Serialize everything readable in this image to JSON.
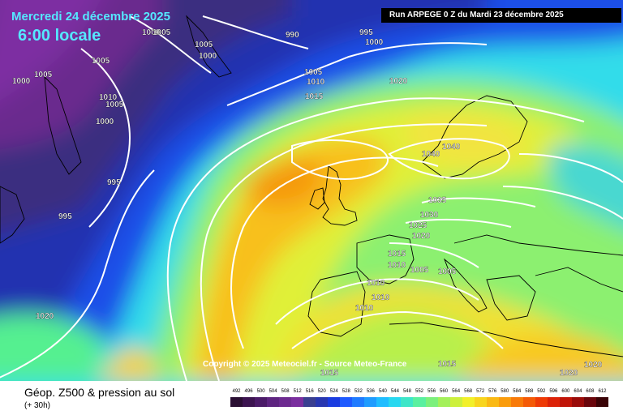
{
  "header": {
    "date_text": "Mercredi 24 décembre 2025",
    "hour_text": "6:00 locale",
    "run_text": "Run ARPEGE 0 Z du Mardi 23 décembre 2025"
  },
  "copyright": "Copyright © 2025 Meteociel.fr - Source Meteo-France",
  "footer": {
    "title": "Géop. Z500 & pression au sol",
    "subtitle": "(+ 30h)"
  },
  "scale": {
    "labels": [
      "492",
      "496",
      "500",
      "504",
      "508",
      "512",
      "516",
      "520",
      "524",
      "528",
      "532",
      "536",
      "540",
      "544",
      "548",
      "552",
      "556",
      "560",
      "564",
      "568",
      "572",
      "576",
      "580",
      "584",
      "588",
      "592",
      "596",
      "600",
      "604",
      "608",
      "612"
    ],
    "colors": [
      "#2a0f33",
      "#3c1450",
      "#4b1b68",
      "#5e2480",
      "#6d2a90",
      "#7a2e9e",
      "#3a3f90",
      "#2837b0",
      "#1a3ce0",
      "#1e5aff",
      "#1f7bff",
      "#1f9cff",
      "#20bdff",
      "#28d8f0",
      "#3ee6c8",
      "#5af0a0",
      "#7cf07c",
      "#a4f05a",
      "#cdf03c",
      "#f2f02a",
      "#f8d51e",
      "#fab914",
      "#fa9c0c",
      "#f87a08",
      "#f45a06",
      "#ee3a06",
      "#dc2208",
      "#c01408",
      "#9a0c0a",
      "#6a060c",
      "#3a0306"
    ]
  },
  "isobars": [
    {
      "label": "990"
    },
    {
      "label": "995"
    },
    {
      "label": "1000"
    },
    {
      "label": "1005"
    },
    {
      "label": "1010"
    },
    {
      "label": "1015"
    },
    {
      "label": "1020"
    },
    {
      "label": "1025"
    },
    {
      "label": "1030"
    },
    {
      "label": "1035"
    },
    {
      "label": "1040"
    }
  ]
}
